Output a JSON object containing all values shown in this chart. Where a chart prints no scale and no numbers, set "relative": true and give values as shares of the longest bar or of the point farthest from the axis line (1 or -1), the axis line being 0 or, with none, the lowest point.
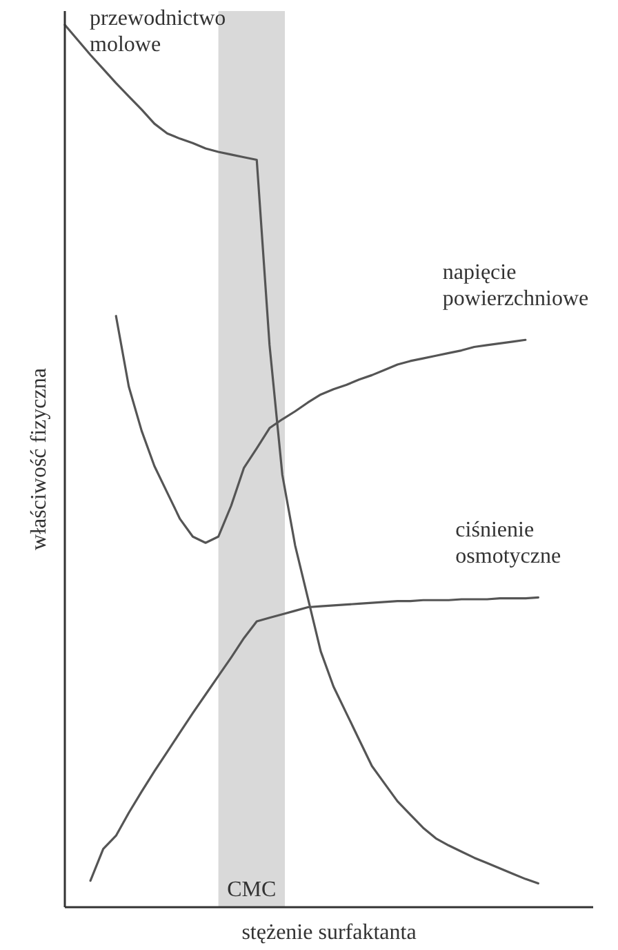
{
  "chart_data": {
    "type": "line",
    "relative": true,
    "xlabel": "stężenie surfaktanta",
    "ylabel": "właściwość fizyczna",
    "categories": [
      null,
      null,
      null,
      null,
      null,
      null,
      null,
      null,
      null,
      null,
      null,
      null,
      null,
      null,
      null,
      null,
      null,
      null,
      null,
      null,
      null,
      null,
      null,
      null,
      null,
      null,
      null,
      null,
      null,
      null,
      null,
      null,
      null,
      null,
      null,
      null,
      null,
      null,
      null,
      null,
      null
    ],
    "annotations": [
      "CMC"
    ],
    "series": [
      {
        "name": "przewodnictwo molowe",
        "color": "#555555",
        "values": [
          1,
          0.983,
          0.966,
          0.95,
          0.934,
          0.919,
          0.904,
          0.888,
          0.877,
          0.871,
          0.866,
          0.86,
          0.856,
          0.853,
          0.85,
          0.847,
          0.637,
          0.49,
          0.41,
          0.35,
          0.29,
          0.25,
          0.22,
          0.19,
          0.16,
          0.14,
          0.12,
          0.105,
          0.09,
          0.078,
          0.07,
          0.063,
          0.056,
          0.05,
          0.044,
          0.038,
          0.032,
          0.027,
          null,
          null,
          null
        ]
      },
      {
        "name": "napięcie powierzchniowe",
        "color": "#555555",
        "values": [
          null,
          null,
          null,
          null,
          0.67,
          0.59,
          0.54,
          0.5,
          0.47,
          0.44,
          0.42,
          0.413,
          0.42,
          0.455,
          0.498,
          0.52,
          0.543,
          0.553,
          0.562,
          0.572,
          0.581,
          0.587,
          0.592,
          0.598,
          0.603,
          0.609,
          0.615,
          0.619,
          0.622,
          0.625,
          0.628,
          0.631,
          0.635,
          0.637,
          0.639,
          0.641,
          0.643,
          null,
          null,
          null,
          null
        ]
      },
      {
        "name": "ciśnienie osmotyczne",
        "color": "#555555",
        "values": [
          null,
          null,
          0.03,
          0.066,
          0.081,
          0.107,
          0.131,
          0.154,
          0.176,
          0.198,
          0.22,
          0.241,
          0.262,
          0.283,
          0.305,
          0.324,
          0.328,
          0.332,
          0.336,
          0.34,
          0.341,
          0.342,
          0.343,
          0.344,
          0.345,
          0.346,
          0.347,
          0.347,
          0.348,
          0.348,
          0.348,
          0.349,
          0.349,
          0.349,
          0.35,
          0.35,
          0.35,
          0.351,
          null,
          null,
          null
        ]
      }
    ]
  }
}
